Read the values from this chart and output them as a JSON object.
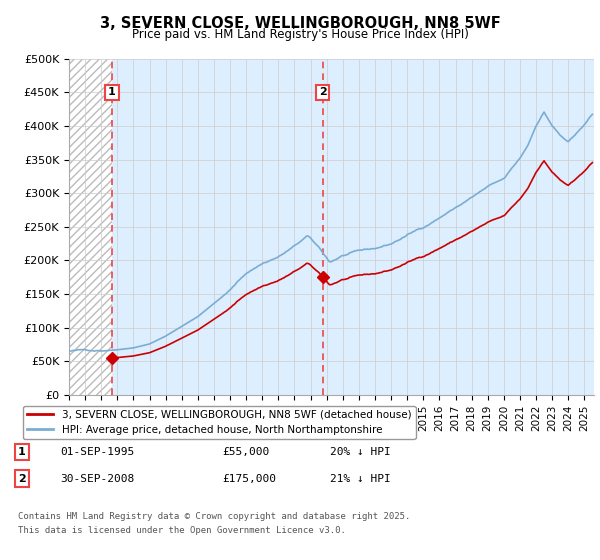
{
  "title": "3, SEVERN CLOSE, WELLINGBOROUGH, NN8 5WF",
  "subtitle": "Price paid vs. HM Land Registry's House Price Index (HPI)",
  "ylabel_ticks": [
    "£0",
    "£50K",
    "£100K",
    "£150K",
    "£200K",
    "£250K",
    "£300K",
    "£350K",
    "£400K",
    "£450K",
    "£500K"
  ],
  "ytick_values": [
    0,
    50000,
    100000,
    150000,
    200000,
    250000,
    300000,
    350000,
    400000,
    450000,
    500000
  ],
  "ylim": [
    0,
    500000
  ],
  "xlim_start": 1993.0,
  "xlim_end": 2025.6,
  "sale1_year": 1995.67,
  "sale1_price": 55000,
  "sale2_year": 2008.75,
  "sale2_price": 175000,
  "red_color": "#cc0000",
  "blue_color": "#7aadd4",
  "blue_fill": "#ddeeff",
  "vline_color": "#ee4444",
  "hatch_edgecolor": "#bbbbbb",
  "legend1": "3, SEVERN CLOSE, WELLINGBOROUGH, NN8 5WF (detached house)",
  "legend2": "HPI: Average price, detached house, North Northamptonshire",
  "footnote1": "Contains HM Land Registry data © Crown copyright and database right 2025.",
  "footnote2": "This data is licensed under the Open Government Licence v3.0.",
  "row1_date": "01-SEP-1995",
  "row1_price": "£55,000",
  "row1_hpi": "20% ↓ HPI",
  "row2_date": "30-SEP-2008",
  "row2_price": "£175,000",
  "row2_hpi": "21% ↓ HPI"
}
